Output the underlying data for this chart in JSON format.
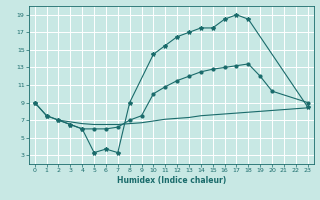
{
  "bg_color": "#c8e8e4",
  "grid_color": "#ffffff",
  "line_color": "#1a6b6b",
  "xlabel": "Humidex (Indice chaleur)",
  "xlim": [
    -0.5,
    23.5
  ],
  "ylim": [
    2,
    20
  ],
  "yticks": [
    3,
    5,
    7,
    9,
    11,
    13,
    15,
    17,
    19
  ],
  "xticks": [
    0,
    1,
    2,
    3,
    4,
    5,
    6,
    7,
    8,
    9,
    10,
    11,
    12,
    13,
    14,
    15,
    16,
    17,
    18,
    19,
    20,
    21,
    22,
    23
  ],
  "line_zigzag_x": [
    0,
    1,
    2,
    3,
    4,
    5,
    6,
    7,
    8,
    10,
    11,
    12,
    13,
    14,
    15,
    16,
    17,
    18,
    23
  ],
  "line_zigzag_y": [
    9.0,
    7.5,
    7.0,
    6.5,
    6.0,
    3.3,
    3.7,
    3.3,
    9.0,
    14.5,
    15.5,
    16.5,
    17.0,
    17.5,
    17.5,
    18.5,
    19.0,
    18.5,
    8.5
  ],
  "line_upper_x": [
    0,
    1,
    2,
    3,
    4,
    5,
    6,
    7,
    8,
    9,
    10,
    11,
    12,
    13,
    14,
    15,
    16,
    17,
    18,
    19,
    20,
    23
  ],
  "line_upper_y": [
    9.0,
    7.5,
    7.0,
    6.5,
    6.0,
    6.0,
    6.0,
    6.2,
    7.0,
    7.5,
    10.0,
    10.8,
    11.5,
    12.0,
    12.5,
    12.8,
    13.0,
    13.2,
    13.4,
    12.0,
    10.3,
    9.0
  ],
  "line_lower_x": [
    2,
    3,
    4,
    5,
    6,
    7,
    8,
    9,
    10,
    11,
    12,
    13,
    14,
    15,
    16,
    17,
    18,
    19,
    20,
    21,
    22,
    23
  ],
  "line_lower_y": [
    7.0,
    6.8,
    6.6,
    6.5,
    6.5,
    6.5,
    6.6,
    6.7,
    6.9,
    7.1,
    7.2,
    7.3,
    7.5,
    7.6,
    7.7,
    7.8,
    7.9,
    8.0,
    8.1,
    8.2,
    8.3,
    8.4
  ]
}
